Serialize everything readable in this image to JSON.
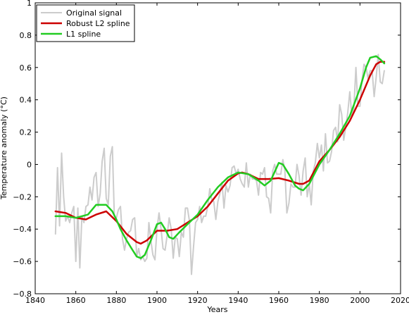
{
  "chart_data": {
    "type": "line",
    "xlabel": "Years",
    "ylabel": "Temperature anomaly (°C)",
    "xlim": [
      1840,
      2020
    ],
    "ylim": [
      -0.8,
      1.0
    ],
    "x_ticks": [
      1840,
      1860,
      1880,
      1900,
      1920,
      1940,
      1960,
      1980,
      2000,
      2020
    ],
    "y_ticks": [
      -0.8,
      -0.6,
      -0.4,
      -0.2,
      0,
      0.2,
      0.4,
      0.6,
      0.8,
      1
    ],
    "x_tick_labels": [
      "1840",
      "1860",
      "1880",
      "1900",
      "1920",
      "1940",
      "1960",
      "1980",
      "2000",
      "2020"
    ],
    "y_tick_labels": [
      "−0.8",
      "−0.6",
      "−0.4",
      "−0.2",
      "0",
      "0.2",
      "0.4",
      "0.6",
      "0.8",
      "1"
    ],
    "grid": false,
    "legend_position": "top-left",
    "series": [
      {
        "name": "Original signal",
        "color": "#cccccc",
        "x": [
          1850,
          1851,
          1852,
          1853,
          1854,
          1855,
          1856,
          1857,
          1858,
          1859,
          1860,
          1861,
          1862,
          1863,
          1864,
          1865,
          1866,
          1867,
          1868,
          1869,
          1870,
          1871,
          1872,
          1873,
          1874,
          1875,
          1876,
          1877,
          1878,
          1879,
          1880,
          1881,
          1882,
          1883,
          1884,
          1885,
          1886,
          1887,
          1888,
          1889,
          1890,
          1891,
          1892,
          1893,
          1894,
          1895,
          1896,
          1897,
          1898,
          1899,
          1900,
          1901,
          1902,
          1903,
          1904,
          1905,
          1906,
          1907,
          1908,
          1909,
          1910,
          1911,
          1912,
          1913,
          1914,
          1915,
          1916,
          1917,
          1918,
          1919,
          1920,
          1921,
          1922,
          1923,
          1924,
          1925,
          1926,
          1927,
          1928,
          1929,
          1930,
          1931,
          1932,
          1933,
          1934,
          1935,
          1936,
          1937,
          1938,
          1939,
          1940,
          1941,
          1942,
          1943,
          1944,
          1945,
          1946,
          1947,
          1948,
          1949,
          1950,
          1951,
          1952,
          1953,
          1954,
          1955,
          1956,
          1957,
          1958,
          1959,
          1960,
          1961,
          1962,
          1963,
          1964,
          1965,
          1966,
          1967,
          1968,
          1969,
          1970,
          1971,
          1972,
          1973,
          1974,
          1975,
          1976,
          1977,
          1978,
          1979,
          1980,
          1981,
          1982,
          1983,
          1984,
          1985,
          1986,
          1987,
          1988,
          1989,
          1990,
          1991,
          1992,
          1993,
          1994,
          1995,
          1996,
          1997,
          1998,
          1999,
          2000,
          2001,
          2002,
          2003,
          2004,
          2005,
          2006,
          2007,
          2008,
          2009,
          2010,
          2011,
          2012
        ],
        "y": [
          -0.43,
          -0.02,
          -0.38,
          0.07,
          -0.2,
          -0.35,
          -0.32,
          -0.36,
          -0.3,
          -0.26,
          -0.6,
          -0.27,
          -0.64,
          -0.32,
          -0.36,
          -0.26,
          -0.25,
          -0.14,
          -0.22,
          -0.08,
          -0.05,
          -0.26,
          -0.18,
          0.02,
          0.1,
          -0.21,
          -0.25,
          0.05,
          0.11,
          -0.32,
          -0.33,
          -0.28,
          -0.26,
          -0.46,
          -0.53,
          -0.46,
          -0.42,
          -0.41,
          -0.34,
          -0.33,
          -0.57,
          -0.52,
          -0.59,
          -0.57,
          -0.6,
          -0.58,
          -0.36,
          -0.47,
          -0.56,
          -0.59,
          -0.4,
          -0.3,
          -0.4,
          -0.52,
          -0.53,
          -0.44,
          -0.33,
          -0.4,
          -0.58,
          -0.45,
          -0.46,
          -0.57,
          -0.42,
          -0.45,
          -0.27,
          -0.27,
          -0.35,
          -0.68,
          -0.51,
          -0.36,
          -0.34,
          -0.26,
          -0.36,
          -0.32,
          -0.32,
          -0.26,
          -0.15,
          -0.22,
          -0.23,
          -0.34,
          -0.23,
          -0.18,
          -0.11,
          -0.27,
          -0.13,
          -0.17,
          -0.13,
          -0.02,
          -0.01,
          -0.06,
          -0.03,
          -0.09,
          -0.12,
          -0.14,
          0.01,
          -0.14,
          -0.06,
          -0.09,
          -0.09,
          -0.1,
          -0.19,
          -0.05,
          -0.06,
          -0.02,
          -0.2,
          -0.21,
          -0.3,
          -0.04,
          0.0,
          -0.06,
          -0.06,
          -0.06,
          0.03,
          -0.04,
          -0.3,
          -0.24,
          -0.12,
          -0.14,
          -0.14,
          0.0,
          -0.07,
          -0.19,
          -0.04,
          0.04,
          -0.2,
          -0.12,
          -0.25,
          -0.04,
          0.01,
          0.13,
          0.04,
          0.12,
          -0.04,
          0.19,
          0.01,
          0.02,
          0.08,
          0.21,
          0.23,
          0.14,
          0.37,
          0.31,
          0.15,
          0.23,
          0.32,
          0.45,
          0.3,
          0.35,
          0.6,
          0.36,
          0.36,
          0.52,
          0.62,
          0.6,
          0.53,
          0.58,
          0.58,
          0.42,
          0.54,
          0.68,
          0.51,
          0.5,
          0.58
        ],
        "y_comment": ""
      },
      {
        "name": "Robust L2 spline",
        "color": "#cc0000",
        "x": [
          1850,
          1855,
          1860,
          1865,
          1870,
          1875,
          1880,
          1885,
          1890,
          1892,
          1895,
          1900,
          1905,
          1910,
          1915,
          1920,
          1925,
          1930,
          1935,
          1940,
          1942,
          1945,
          1950,
          1955,
          1960,
          1965,
          1970,
          1972,
          1975,
          1980,
          1985,
          1990,
          1995,
          2000,
          2005,
          2008,
          2010,
          2012
        ],
        "y": [
          -0.29,
          -0.3,
          -0.33,
          -0.34,
          -0.31,
          -0.29,
          -0.35,
          -0.43,
          -0.48,
          -0.49,
          -0.47,
          -0.41,
          -0.41,
          -0.4,
          -0.36,
          -0.32,
          -0.26,
          -0.18,
          -0.1,
          -0.055,
          -0.05,
          -0.06,
          -0.09,
          -0.09,
          -0.085,
          -0.1,
          -0.12,
          -0.12,
          -0.1,
          0.02,
          0.09,
          0.17,
          0.27,
          0.4,
          0.55,
          0.62,
          0.635,
          0.635
        ]
      },
      {
        "name": "L1 spline",
        "color": "#22cc22",
        "x": [
          1850,
          1855,
          1860,
          1863,
          1866,
          1870,
          1872,
          1875,
          1878,
          1880,
          1882,
          1885,
          1888,
          1890,
          1892,
          1894,
          1897,
          1900,
          1902,
          1904,
          1906,
          1908,
          1911,
          1915,
          1920,
          1925,
          1930,
          1935,
          1940,
          1945,
          1950,
          1953,
          1956,
          1960,
          1962,
          1965,
          1968,
          1970,
          1972,
          1975,
          1980,
          1985,
          1990,
          1995,
          2000,
          2003,
          2005,
          2008,
          2010,
          2012
        ],
        "y": [
          -0.32,
          -0.32,
          -0.33,
          -0.32,
          -0.31,
          -0.25,
          -0.25,
          -0.25,
          -0.29,
          -0.34,
          -0.4,
          -0.47,
          -0.53,
          -0.57,
          -0.58,
          -0.56,
          -0.47,
          -0.37,
          -0.36,
          -0.4,
          -0.45,
          -0.46,
          -0.42,
          -0.37,
          -0.31,
          -0.22,
          -0.14,
          -0.08,
          -0.05,
          -0.06,
          -0.1,
          -0.13,
          -0.1,
          0.01,
          0.0,
          -0.06,
          -0.13,
          -0.15,
          -0.16,
          -0.12,
          0.0,
          0.09,
          0.19,
          0.3,
          0.47,
          0.6,
          0.66,
          0.67,
          0.65,
          0.625
        ]
      }
    ]
  }
}
